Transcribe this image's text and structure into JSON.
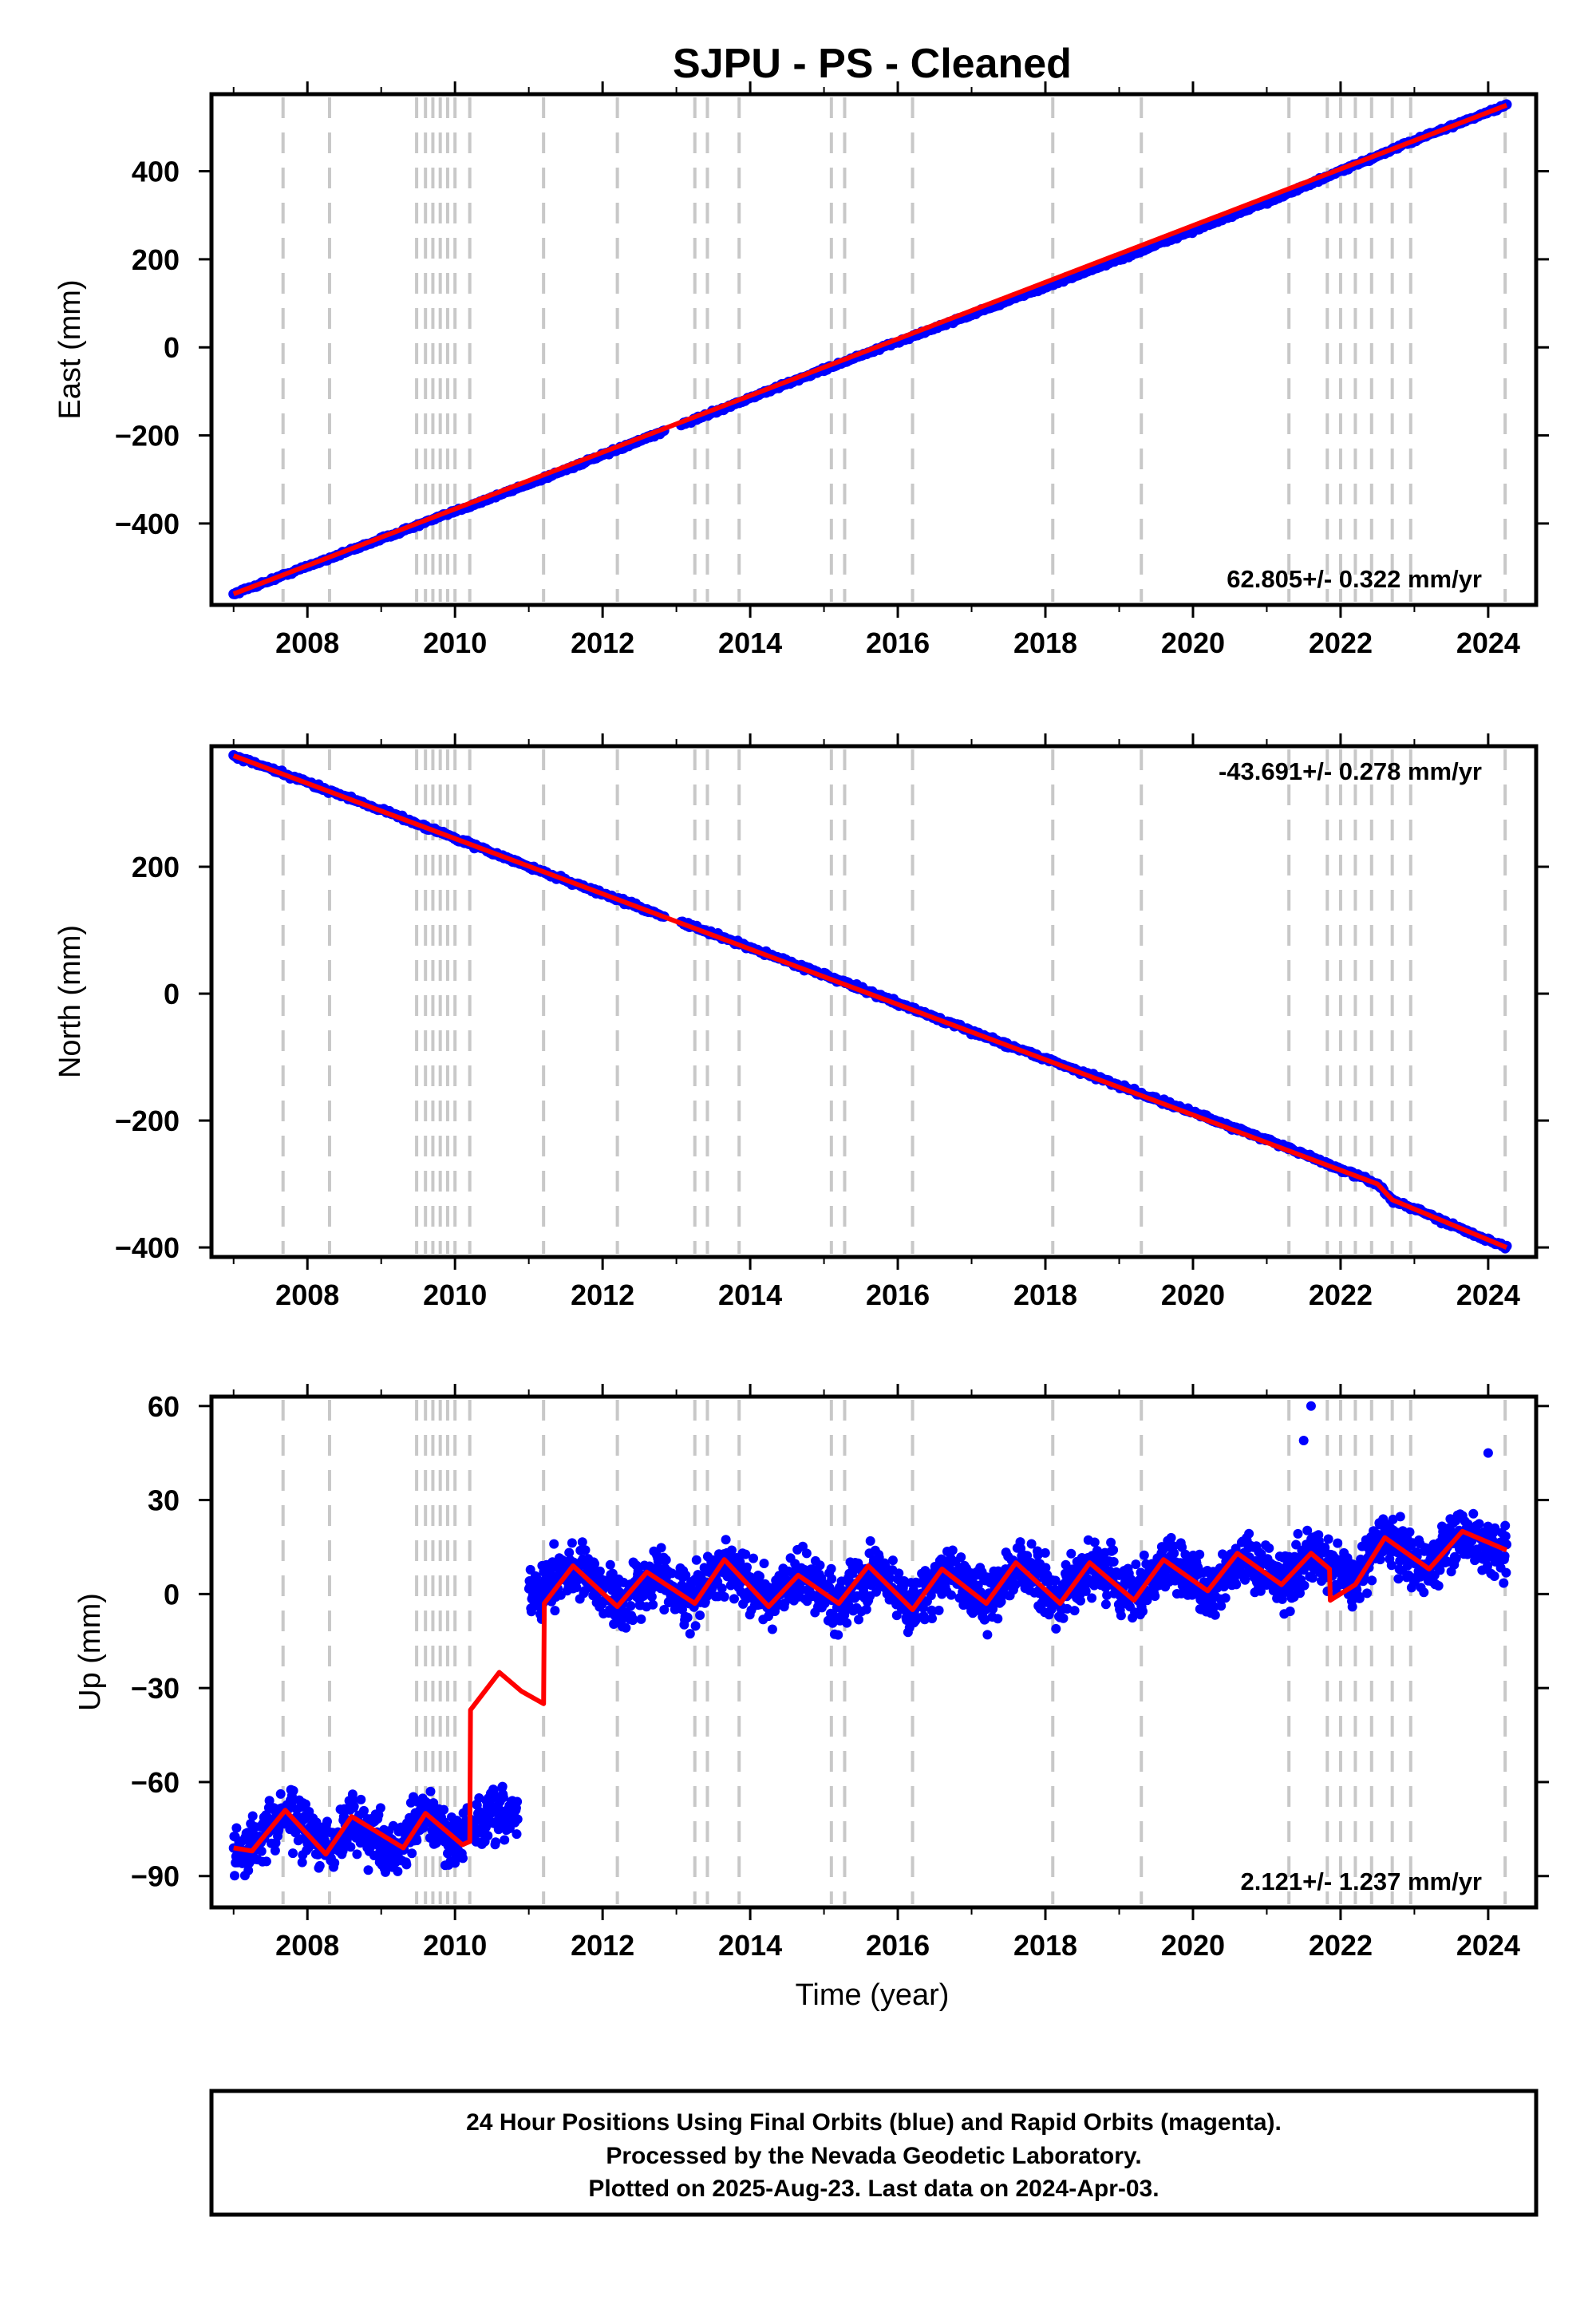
{
  "figure": {
    "title": "SJPU  - PS - Cleaned",
    "xlabel": "Time (year)",
    "footer": {
      "line1": "24 Hour Positions Using Final Orbits (blue) and Rapid Orbits (magenta).",
      "line2": "Processed by the Nevada Geodetic Laboratory.",
      "line3": "Plotted on 2025-Aug-23. Last data on 2024-Apr-03."
    },
    "colors": {
      "data": "#0000ff",
      "model": "#ff0000",
      "steps": "#c8c8c8",
      "frame": "#000000"
    }
  },
  "chart_data": [
    {
      "type": "scatter",
      "panel": "east",
      "ylabel": "East (mm)",
      "rate": "62.805+/- 0.322 mm/yr",
      "rate_position": "bottom-right",
      "xlim": [
        2006.7,
        2024.65
      ],
      "ylim": [
        -585,
        575
      ],
      "xticks": [
        2008,
        2010,
        2012,
        2014,
        2016,
        2018,
        2020,
        2022,
        2024
      ],
      "yticks": [
        -400,
        -200,
        0,
        200,
        400
      ],
      "grid": false,
      "series": [
        {
          "role": "data",
          "color": "#0000ff",
          "x": [
            2007.0,
            2009.0,
            2011.0,
            2013.0,
            2015.0,
            2017.0,
            2019.0,
            2021.0,
            2023.0,
            2024.25
          ],
          "y": [
            -560,
            -435,
            -310,
            -180,
            -50,
            75,
            200,
            330,
            470,
            550
          ]
        },
        {
          "role": "model",
          "color": "#ff0000",
          "x": [
            2007.0,
            2024.25
          ],
          "y": [
            -560,
            550
          ]
        }
      ]
    },
    {
      "type": "scatter",
      "panel": "north",
      "ylabel": "North (mm)",
      "rate": "-43.691+/- 0.278 mm/yr",
      "rate_position": "top-right",
      "xlim": [
        2006.7,
        2024.65
      ],
      "ylim": [
        -415,
        390
      ],
      "xticks": [
        2008,
        2010,
        2012,
        2014,
        2016,
        2018,
        2020,
        2022,
        2024
      ],
      "yticks": [
        -400,
        -200,
        0,
        200
      ],
      "grid": false,
      "series": [
        {
          "role": "data",
          "color": "#0000ff",
          "x": [
            2007.0,
            2009.0,
            2011.0,
            2013.0,
            2015.0,
            2017.0,
            2019.0,
            2021.0,
            2022.5,
            2022.7,
            2024.25
          ],
          "y": [
            375,
            290,
            200,
            115,
            30,
            -60,
            -145,
            -230,
            -300,
            -325,
            -400
          ]
        },
        {
          "role": "model",
          "color": "#ff0000",
          "x": [
            2007.0,
            2022.5,
            2022.7,
            2024.25
          ],
          "y": [
            375,
            -300,
            -325,
            -400
          ]
        }
      ]
    },
    {
      "type": "scatter",
      "panel": "up",
      "ylabel": "Up (mm)",
      "rate": "2.121+/- 1.237 mm/yr",
      "rate_position": "bottom-right",
      "xlim": [
        2006.7,
        2024.65
      ],
      "ylim": [
        -100,
        63
      ],
      "xticks": [
        2008,
        2010,
        2012,
        2014,
        2016,
        2018,
        2020,
        2022,
        2024
      ],
      "yticks": [
        -90,
        -60,
        -30,
        0,
        30,
        60
      ],
      "grid": false,
      "series": [
        {
          "role": "data",
          "color": "#0000ff",
          "x": [
            2007.0,
            2007.7,
            2008.3,
            2008.6,
            2009.2,
            2009.6,
            2010.0,
            2010.2,
            2010.8,
            2010.8,
            2011.1,
            2011.6,
            2012.3,
            2012.7,
            2013.2,
            2013.7,
            2014.3,
            2014.7,
            2015.2,
            2015.7,
            2016.2,
            2016.7,
            2017.2,
            2017.7,
            2018.2,
            2018.7,
            2019.2,
            2019.7,
            2020.2,
            2020.7,
            2021.2,
            2021.7,
            2022.2,
            2022.6,
            2023.2,
            2023.6,
            2024.25
          ],
          "y": [
            -85,
            -70,
            -82,
            -72,
            -82,
            -70,
            -80,
            -75,
            -70,
            5,
            0,
            9,
            -3,
            7,
            -2,
            10,
            -3,
            6,
            -3,
            7,
            -4,
            8,
            -2,
            9,
            -2,
            9,
            -1,
            11,
            1,
            12,
            3,
            14,
            4,
            18,
            8,
            20,
            10
          ],
          "spread": 8
        },
        {
          "role": "model",
          "color": "#ff0000",
          "x": [
            2007.0,
            2007.25,
            2007.7,
            2008.25,
            2008.6,
            2009.3,
            2009.6,
            2009.95,
            2010.1,
            2010.2,
            2010.21,
            2010.6,
            2010.9,
            2011.2,
            2011.21,
            2011.6,
            2012.2,
            2012.6,
            2013.25,
            2013.65,
            2014.25,
            2014.65,
            2015.2,
            2015.6,
            2016.2,
            2016.6,
            2017.2,
            2017.6,
            2018.2,
            2018.6,
            2019.2,
            2019.6,
            2020.2,
            2020.6,
            2021.2,
            2021.6,
            2021.85,
            2021.86,
            2022.2,
            2022.6,
            2023.2,
            2023.65,
            2024.25
          ],
          "y": [
            -81,
            -82,
            -69,
            -83,
            -71,
            -81,
            -70,
            -77,
            -80,
            -79,
            -37,
            -25,
            -31,
            -35,
            -3,
            9,
            -4,
            7,
            -3,
            11,
            -4,
            6,
            -3,
            9,
            -5,
            8,
            -3,
            10,
            -3,
            10,
            -2,
            11,
            1,
            13,
            3,
            13,
            8,
            -2,
            3,
            18,
            8,
            20,
            14
          ]
        }
      ]
    }
  ],
  "step_epochs": [
    2007.67,
    2008.3,
    2009.48,
    2009.6,
    2009.7,
    2009.8,
    2009.9,
    2010.0,
    2010.2,
    2011.2,
    2012.2,
    2013.25,
    2013.42,
    2013.85,
    2015.1,
    2015.28,
    2016.2,
    2018.1,
    2019.3,
    2021.3,
    2021.82,
    2022.0,
    2022.2,
    2022.42,
    2022.7,
    2022.95,
    2024.23
  ]
}
